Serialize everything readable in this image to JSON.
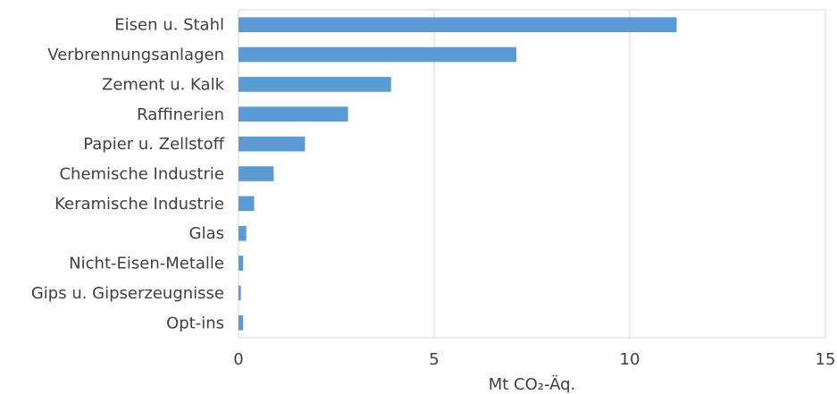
{
  "chart_data": {
    "type": "bar",
    "orientation": "horizontal",
    "categories": [
      "Eisen u. Stahl",
      "Verbrennungsanlagen",
      "Zement u. Kalk",
      "Raffinerien",
      "Papier u. Zellstoff",
      "Chemische Industrie",
      "Keramische Industrie",
      "Glas",
      "Nicht-Eisen-Metalle",
      "Gips u. Gipserzeugnisse",
      "Opt-ins"
    ],
    "values": [
      11.2,
      7.1,
      3.9,
      2.8,
      1.7,
      0.9,
      0.4,
      0.2,
      0.12,
      0.06,
      0.12
    ],
    "xlim": [
      0,
      15
    ],
    "xticks": [
      "0",
      "5",
      "10",
      "15"
    ],
    "xlabel": "Mt CO₂-Äq.",
    "grid": "vertical",
    "legend": "none",
    "bar_color": "#5b9bd5",
    "grid_color": "#d9d9d9",
    "text_color": "#404040"
  }
}
